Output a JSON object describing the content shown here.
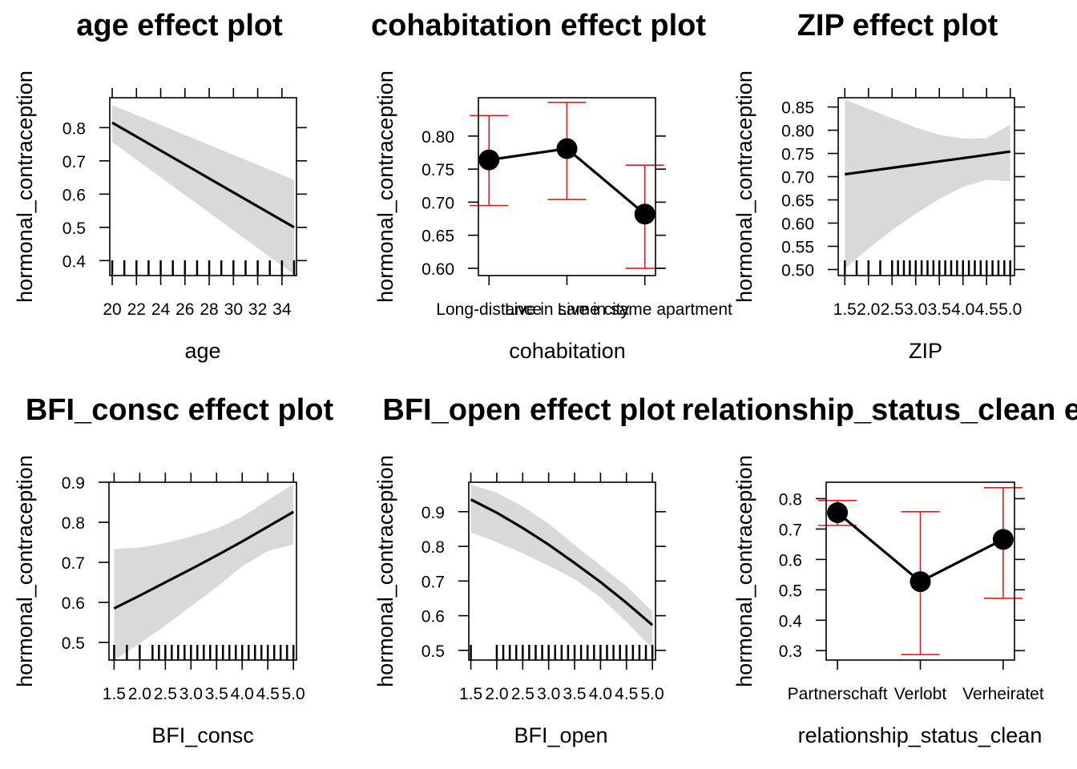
{
  "chart_data": [
    {
      "type": "line",
      "title": "age effect plot",
      "xlabel": "age",
      "ylabel": "hormonal_contraception",
      "x_ticks": [
        "20",
        "22",
        "24",
        "26",
        "28",
        "30",
        "32",
        "34"
      ],
      "y_ticks": [
        "0.4",
        "0.5",
        "0.6",
        "0.7",
        "0.8"
      ],
      "xlim": [
        19.8,
        35.2
      ],
      "ylim": [
        0.355,
        0.89
      ],
      "x": [
        20,
        35
      ],
      "fit": [
        0.815,
        0.5
      ],
      "lower": [
        0.757,
        0.358
      ],
      "upper": [
        0.868,
        0.643
      ],
      "rug": [
        20,
        21,
        22,
        23,
        24,
        25,
        26,
        27,
        28,
        29,
        30,
        31,
        32,
        33,
        34,
        35
      ]
    },
    {
      "type": "line",
      "title": "cohabitation effect plot",
      "xlabel": "cohabitation",
      "ylabel": "hormonal_contraception",
      "categories": [
        "Long-distance",
        "Live in same city",
        "Live in same apartment"
      ],
      "y_ticks": [
        "0.60",
        "0.65",
        "0.70",
        "0.75",
        "0.80"
      ],
      "ylim": [
        0.589,
        0.858
      ],
      "fit": [
        0.764,
        0.781,
        0.682
      ],
      "lower": [
        0.695,
        0.704,
        0.6
      ],
      "upper": [
        0.831,
        0.851,
        0.756
      ]
    },
    {
      "type": "line",
      "title": "ZIP effect plot",
      "xlabel": "ZIP",
      "ylabel": "hormonal_contraception",
      "x_ticks": [
        "1.5",
        "2.0",
        "2.5",
        "3.0",
        "3.5",
        "4.0",
        "4.5",
        "5.0"
      ],
      "y_ticks": [
        "0.50",
        "0.55",
        "0.60",
        "0.65",
        "0.70",
        "0.75",
        "0.80",
        "0.85"
      ],
      "xlim": [
        1.36,
        5.09
      ],
      "ylim": [
        0.487,
        0.87
      ],
      "x": [
        1.5,
        2.0,
        2.5,
        3.0,
        3.5,
        4.0,
        4.5,
        5.0
      ],
      "fit": [
        0.705,
        0.712,
        0.719,
        0.726,
        0.733,
        0.74,
        0.747,
        0.754
      ],
      "lower": [
        0.502,
        0.545,
        0.585,
        0.62,
        0.652,
        0.678,
        0.693,
        0.69
      ],
      "upper": [
        0.866,
        0.846,
        0.826,
        0.806,
        0.79,
        0.782,
        0.783,
        0.812
      ],
      "rug": [
        1.5,
        1.75,
        2.0,
        2.25,
        2.5,
        2.625,
        2.75,
        2.875,
        3.0,
        3.125,
        3.25,
        3.375,
        3.5,
        3.625,
        3.75,
        3.875,
        4.0,
        4.125,
        4.25,
        4.375,
        4.5,
        4.625,
        4.75,
        4.875,
        5.0
      ]
    },
    {
      "type": "line",
      "title": "BFI_consc effect plot",
      "xlabel": "BFI_consc",
      "ylabel": "hormonal_contraception",
      "x_ticks": [
        "1.5",
        "2.0",
        "2.5",
        "3.0",
        "3.5",
        "4.0",
        "4.5",
        "5.0"
      ],
      "y_ticks": [
        "0.5",
        "0.6",
        "0.7",
        "0.8",
        "0.9"
      ],
      "xlim": [
        1.4,
        5.06
      ],
      "ylim": [
        0.456,
        0.9
      ],
      "x": [
        1.5,
        2.0,
        2.5,
        3.0,
        3.5,
        4.0,
        4.5,
        5.0
      ],
      "fit": [
        0.585,
        0.617,
        0.65,
        0.683,
        0.717,
        0.752,
        0.789,
        0.826
      ],
      "lower": [
        0.455,
        0.497,
        0.542,
        0.59,
        0.638,
        0.69,
        0.728,
        0.745
      ],
      "upper": [
        0.733,
        0.737,
        0.748,
        0.764,
        0.784,
        0.814,
        0.855,
        0.895
      ],
      "rug": [
        1.5,
        1.75,
        2.0,
        2.25,
        2.375,
        2.5,
        2.625,
        2.75,
        2.875,
        3.0,
        3.125,
        3.25,
        3.375,
        3.5,
        3.625,
        3.75,
        3.875,
        4.0,
        4.125,
        4.25,
        4.375,
        4.5,
        4.625,
        4.75,
        4.875,
        5.0
      ]
    },
    {
      "type": "line",
      "title": "BFI_open effect plot",
      "xlabel": "BFI_open",
      "ylabel": "hormonal_contraception",
      "x_ticks": [
        "1.5",
        "2.0",
        "2.5",
        "3.0",
        "3.5",
        "4.0",
        "4.5",
        "5.0"
      ],
      "y_ticks": [
        "0.5",
        "0.6",
        "0.7",
        "0.8",
        "0.9"
      ],
      "xlim": [
        1.46,
        5.06
      ],
      "ylim": [
        0.472,
        0.985
      ],
      "x": [
        1.5,
        2.0,
        2.5,
        3.0,
        3.5,
        4.0,
        4.5,
        5.0
      ],
      "fit": [
        0.935,
        0.897,
        0.853,
        0.805,
        0.752,
        0.697,
        0.637,
        0.573
      ],
      "lower": [
        0.84,
        0.812,
        0.78,
        0.744,
        0.706,
        0.653,
        0.582,
        0.505
      ],
      "upper": [
        0.978,
        0.955,
        0.915,
        0.865,
        0.804,
        0.745,
        0.685,
        0.612
      ],
      "rug": [
        1.5,
        2.0,
        2.125,
        2.25,
        2.375,
        2.5,
        2.625,
        2.75,
        2.875,
        3.0,
        3.125,
        3.25,
        3.375,
        3.5,
        3.625,
        3.75,
        3.875,
        4.0,
        4.125,
        4.25,
        4.375,
        4.5,
        4.625,
        4.75,
        4.875,
        5.0
      ]
    },
    {
      "type": "line",
      "title": "relationship_status_clean effect plot",
      "xlabel": "relationship_status_clean",
      "ylabel": "hormonal_contraception",
      "categories": [
        "Partnerschaft",
        "Verlobt",
        "Verheiratet"
      ],
      "y_ticks": [
        "0.3",
        "0.4",
        "0.5",
        "0.6",
        "0.7",
        "0.8"
      ],
      "ylim": [
        0.269,
        0.854
      ],
      "fit": [
        0.754,
        0.527,
        0.666
      ],
      "lower": [
        0.712,
        0.287,
        0.472
      ],
      "upper": [
        0.794,
        0.757,
        0.836
      ]
    }
  ]
}
